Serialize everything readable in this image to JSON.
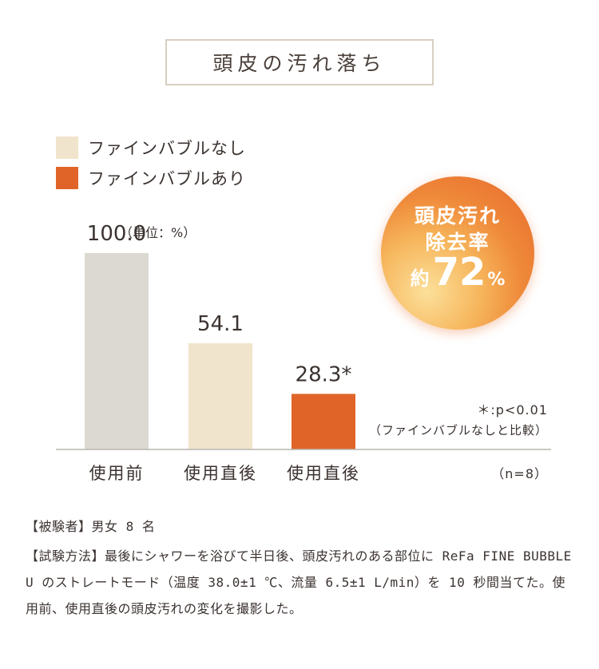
{
  "title": "頭皮の汚れ落ち",
  "legend": [
    {
      "label": "ファインバブルなし",
      "color": "#f1e4cc"
    },
    {
      "label": "ファインバブルあり",
      "color": "#e06427"
    }
  ],
  "badge": {
    "line1": "頭皮汚れ",
    "line2": "除去率",
    "prefix": "約",
    "value": "72",
    "unit": "%"
  },
  "chart_data": {
    "type": "bar",
    "categories": [
      "使用前",
      "使用直後",
      "使用直後"
    ],
    "values": [
      100.0,
      54.1,
      28.3
    ],
    "value_labels": [
      "100.0",
      "54.1",
      "28.3*"
    ],
    "unit_label": "（単位：%）",
    "colors": [
      "#dcd9d3",
      "#f1e4cc",
      "#e06427"
    ],
    "ylim": [
      0,
      100
    ],
    "grid": false
  },
  "notes": {
    "significance": "＊:p<0.01",
    "comparison": "（ファインバブルなしと比較）",
    "sample": "（n=8）"
  },
  "description": {
    "subjects": "【被験者】男女 8 名",
    "method": "【試験方法】最後にシャワーを浴びて半日後、頭皮汚れのある部位に ReFa FINE BUBBLE U のストレートモード（温度 38.0±1 ℃、流量 6.5±1 L/min）を 10 秒間当てた。使用前、使用直後の頭皮汚れの変化を撮影した。"
  }
}
